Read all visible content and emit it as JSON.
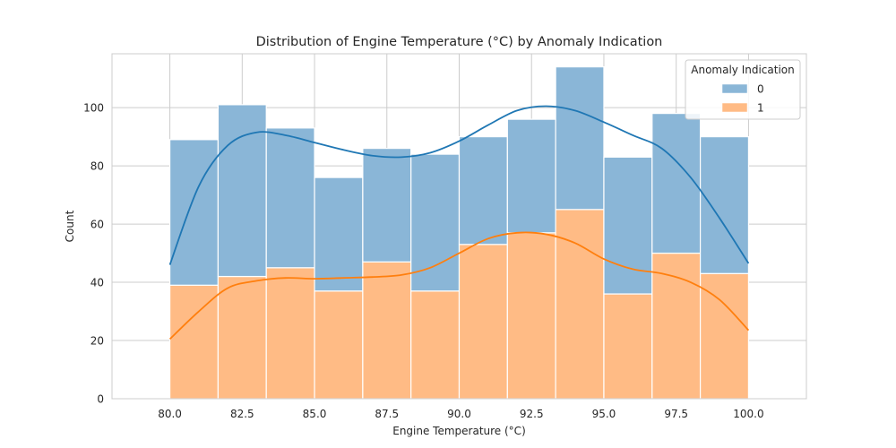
{
  "chart_data": {
    "type": "histogram",
    "title": "Distribution of Engine Temperature (°C) by Anomaly Indication",
    "xlabel": "Engine Temperature (°C)",
    "ylabel": "Count",
    "xlim": [
      78,
      102
    ],
    "ylim": [
      0,
      118.5
    ],
    "xticks": [
      "80.0",
      "82.5",
      "85.0",
      "87.5",
      "90.0",
      "92.5",
      "95.0",
      "97.5",
      "100.0"
    ],
    "xtick_values": [
      80,
      82.5,
      85,
      87.5,
      90,
      92.5,
      95,
      97.5,
      100
    ],
    "yticks": [
      0,
      20,
      40,
      60,
      80,
      100
    ],
    "stacked": true,
    "grid": true,
    "bin_edges": [
      80.0,
      81.667,
      83.333,
      85.0,
      86.667,
      88.333,
      90.0,
      91.667,
      93.333,
      95.0,
      96.667,
      98.333,
      100.0
    ],
    "series": [
      {
        "name": "1",
        "color": "#ffbb85",
        "line_color": "#ff7f0e",
        "counts": [
          39,
          42,
          45,
          37,
          47,
          37,
          53,
          57,
          65,
          36,
          50,
          43
        ],
        "kde_x": [
          80,
          81,
          82,
          83,
          84,
          85,
          86,
          87,
          88,
          89,
          90,
          91,
          92,
          93,
          94,
          95,
          96,
          97,
          98,
          99,
          100
        ],
        "kde_y": [
          20.5,
          30,
          38,
          40.5,
          41.5,
          41.2,
          41.5,
          41.8,
          42.5,
          45,
          50,
          55,
          57,
          56.5,
          53.5,
          48,
          44.5,
          43,
          40,
          34,
          23.5
        ]
      },
      {
        "name": "0",
        "color": "#8ab6d7",
        "line_color": "#1f77b4",
        "counts": [
          50,
          59,
          48,
          39,
          39,
          47,
          37,
          39,
          49,
          47,
          48,
          47
        ],
        "kde_x": [
          80,
          81,
          82,
          83,
          84,
          85,
          86,
          87,
          88,
          89,
          90,
          91,
          92,
          93,
          94,
          95,
          96,
          97,
          98,
          99,
          100
        ],
        "kde_y": [
          46,
          73,
          87,
          91.5,
          90.5,
          88,
          85.5,
          83.5,
          83,
          84.5,
          88.5,
          94,
          99,
          100.5,
          99,
          95,
          90.5,
          86,
          76,
          62,
          46.5
        ]
      }
    ],
    "legend": {
      "title": "Anomaly Indication",
      "position": "top-right",
      "entries": [
        {
          "label": "0",
          "color": "#8ab6d7"
        },
        {
          "label": "1",
          "color": "#ffbb85"
        }
      ]
    }
  }
}
